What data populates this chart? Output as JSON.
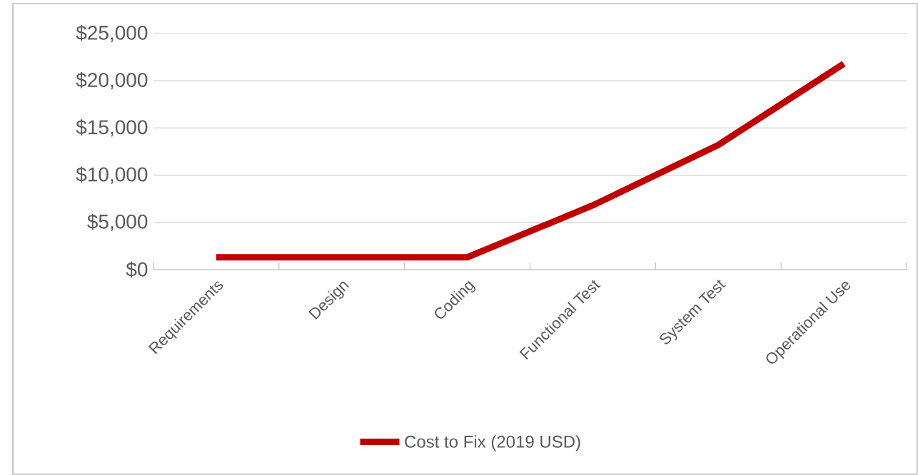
{
  "chart_data": {
    "type": "line",
    "categories": [
      "Requirements",
      "Design",
      "Coding",
      "Functional Test",
      "System Test",
      "Operational Use"
    ],
    "series": [
      {
        "name": "Cost to Fix (2019 USD)",
        "color": "#c00000",
        "values": [
          1300,
          1300,
          1300,
          6800,
          13200,
          21800
        ]
      }
    ],
    "ylim": [
      0,
      25000
    ],
    "yticks": [
      {
        "value": 0,
        "label": "$0"
      },
      {
        "value": 5000,
        "label": "$5,000"
      },
      {
        "value": 10000,
        "label": "$10,000"
      },
      {
        "value": 15000,
        "label": "$15,000"
      },
      {
        "value": 20000,
        "label": "$20,000"
      },
      {
        "value": 25000,
        "label": "$25,000"
      }
    ],
    "grid": "y",
    "legend": "bottom",
    "marker": "none",
    "line_style": "solid"
  }
}
